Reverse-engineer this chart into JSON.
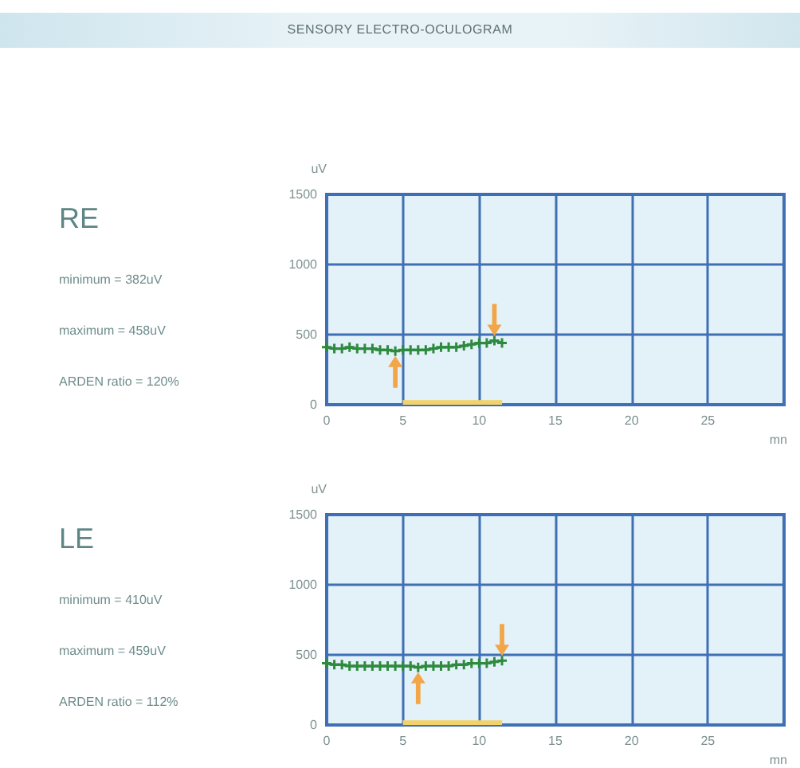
{
  "chart_data": [
    {
      "type": "other",
      "title": "SENSORY ELECTRO-OCULOGRAM"
    },
    {
      "type": "line",
      "xlabel": "mn",
      "ylabel": "uV",
      "x": [
        0,
        0.5,
        1,
        1.5,
        2,
        2.5,
        3,
        3.5,
        4,
        4.5,
        5,
        5.5,
        6,
        6.5,
        7,
        7.5,
        8,
        8.5,
        9,
        9.5,
        10,
        10.5,
        11,
        11.5
      ],
      "series": [
        {
          "color": "#2e8b3e",
          "values": [
            410,
            400,
            400,
            410,
            400,
            400,
            400,
            390,
            390,
            382,
            390,
            390,
            390,
            390,
            400,
            410,
            410,
            410,
            420,
            430,
            440,
            440,
            458,
            440
          ]
        },
        {
          "type": "area",
          "marker": "none",
          "values": [
            null,
            null,
            null,
            null,
            null,
            null,
            null,
            null,
            null,
            null,
            30,
            30,
            30,
            30,
            30,
            30,
            30,
            30,
            30,
            30,
            30,
            30,
            30,
            30
          ],
          "color": "#f2d36b"
        }
      ],
      "xlim": [
        0,
        30
      ],
      "xticks": [
        0,
        5,
        10,
        15,
        20,
        25
      ],
      "ylim": [
        0,
        1500
      ],
      "yticks": [
        0,
        500,
        1000,
        1500
      ],
      "grid": true,
      "marker": "cross",
      "line_style": "solid",
      "annotations": [
        "RE",
        "minimum = 382uV",
        "maximum = 458uV",
        "ARDEN ratio = 120%"
      ]
    },
    {
      "type": "line",
      "xlabel": "mn",
      "ylabel": "uV",
      "x": [
        0,
        0.5,
        1,
        1.5,
        2,
        2.5,
        3,
        3.5,
        4,
        4.5,
        5,
        5.5,
        6,
        6.5,
        7,
        7.5,
        8,
        8.5,
        9,
        9.5,
        10,
        10.5,
        11,
        11.5
      ],
      "series": [
        {
          "color": "#2e8b3e",
          "values": [
            440,
            430,
            430,
            420,
            420,
            420,
            420,
            420,
            420,
            420,
            420,
            420,
            410,
            420,
            420,
            420,
            420,
            430,
            430,
            440,
            440,
            440,
            450,
            459
          ]
        },
        {
          "type": "area",
          "marker": "none",
          "values": [
            null,
            null,
            null,
            null,
            null,
            null,
            null,
            null,
            null,
            null,
            30,
            30,
            30,
            30,
            30,
            30,
            30,
            30,
            30,
            30,
            30,
            30,
            30,
            30
          ],
          "color": "#f2d36b"
        }
      ],
      "xlim": [
        0,
        30
      ],
      "xticks": [
        0,
        5,
        10,
        15,
        20,
        25
      ],
      "ylim": [
        0,
        1500
      ],
      "yticks": [
        0,
        500,
        1000,
        1500
      ],
      "grid": true,
      "marker": "cross",
      "line_style": "solid",
      "annotations": [
        "LE",
        "minimum = 410uV",
        "maximum = 459uV",
        "ARDEN ratio = 112%"
      ]
    }
  ]
}
